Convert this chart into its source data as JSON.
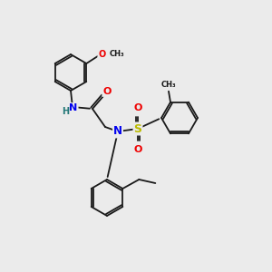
{
  "background_color": "#ebebeb",
  "bond_color": "#1a1a1a",
  "atom_colors": {
    "N": "#0000ee",
    "O": "#ee0000",
    "S": "#bbbb00",
    "H": "#227777",
    "C": "#1a1a1a"
  },
  "figsize": [
    3.0,
    3.0
  ],
  "dpi": 100,
  "scale": 1.0,
  "lw": 1.3,
  "ring_r": 20
}
